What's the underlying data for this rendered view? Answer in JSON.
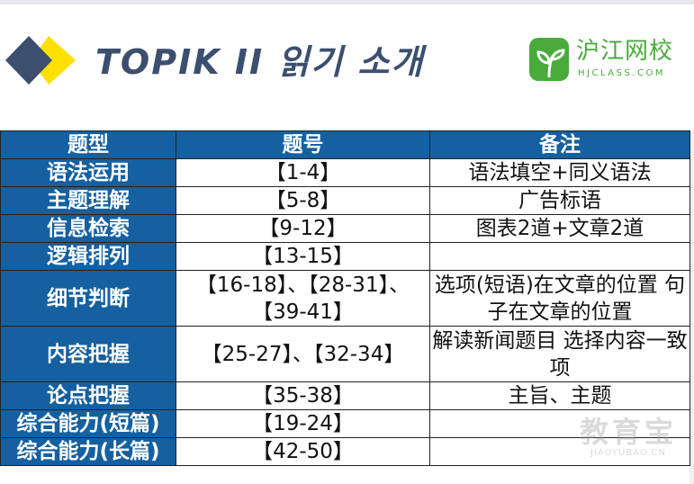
{
  "header": {
    "title": "TOPIK II 읽기 소개",
    "brand_cn": "沪江网校",
    "brand_en": "HJCLASS.COM",
    "accent": "#3c4f6e",
    "yellow": "#ffe000",
    "brand_color": "#4aab3c"
  },
  "table": {
    "headers": [
      "题型",
      "题号",
      "备注"
    ],
    "header_color": "#1560a0",
    "rows": [
      {
        "type": "语法运用",
        "numbers": "【1-4】",
        "note": "语法填空+同义语法"
      },
      {
        "type": "主题理解",
        "numbers": "【5-8】",
        "note": "广告标语"
      },
      {
        "type": "信息检索",
        "numbers": "【9-12】",
        "note": "图表2道+文章2道"
      },
      {
        "type": "逻辑排列",
        "numbers": "【13-15】",
        "note": ""
      },
      {
        "type": "细节判断",
        "numbers": "【16-18】、【28-31】、【39-41】",
        "note": "选项(短语)在文章的位置 句子在文章的位置"
      },
      {
        "type": "内容把握",
        "numbers": "【25-27】、【32-34】",
        "note": "解读新闻题目 选择内容一致项"
      },
      {
        "type": "论点把握",
        "numbers": "【35-38】",
        "note": "主旨、主题"
      },
      {
        "type": "综合能力(短篇)",
        "numbers": "【19-24】",
        "note": ""
      },
      {
        "type": "综合能力(长篇)",
        "numbers": "【42-50】",
        "note": ""
      }
    ]
  },
  "watermark": {
    "cn": "教育宝",
    "en": "JIAOYUBAO.CN"
  }
}
